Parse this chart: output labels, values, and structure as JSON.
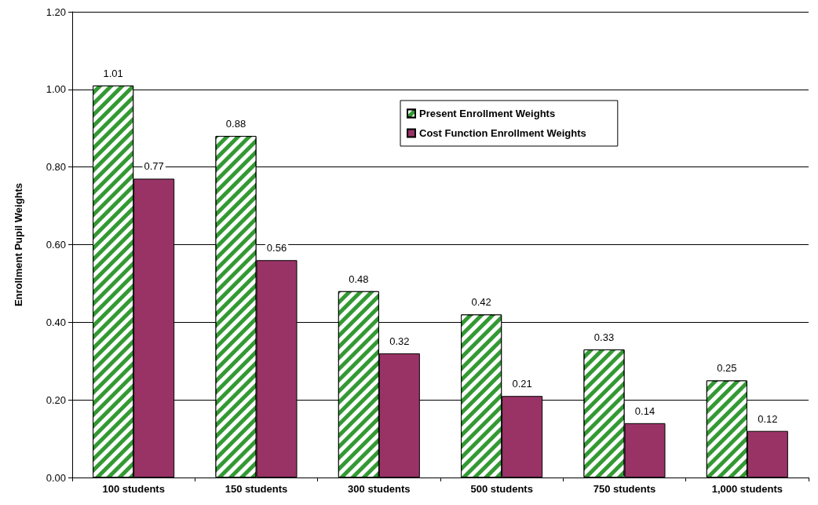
{
  "chart_data": {
    "type": "bar",
    "ylabel": "Enrollment Pupil Weights",
    "categories": [
      "100 students",
      "150 students",
      "300 students",
      "500 students",
      "750 students",
      "1,000 students"
    ],
    "series": [
      {
        "name": "Present Enrollment Weights",
        "color": "#339933",
        "values": [
          1.01,
          0.88,
          0.48,
          0.42,
          0.33,
          0.25
        ]
      },
      {
        "name": "Cost Function Enrollment Weights",
        "color": "#993366",
        "values": [
          0.77,
          0.56,
          0.32,
          0.21,
          0.14,
          0.12
        ]
      }
    ],
    "ylim": [
      0,
      1.2
    ],
    "yticks": [
      {
        "value": 0,
        "label": "0.00"
      },
      {
        "value": 0.2,
        "label": "0.20"
      },
      {
        "value": 0.4,
        "label": "0.40"
      },
      {
        "value": 0.6,
        "label": "0.60"
      },
      {
        "value": 0.8,
        "label": "0.80"
      },
      {
        "value": 1.0,
        "label": "1.00"
      },
      {
        "value": 1.2,
        "label": "1.20"
      }
    ],
    "grid": "y",
    "legend": "top right",
    "data_labels": true
  }
}
